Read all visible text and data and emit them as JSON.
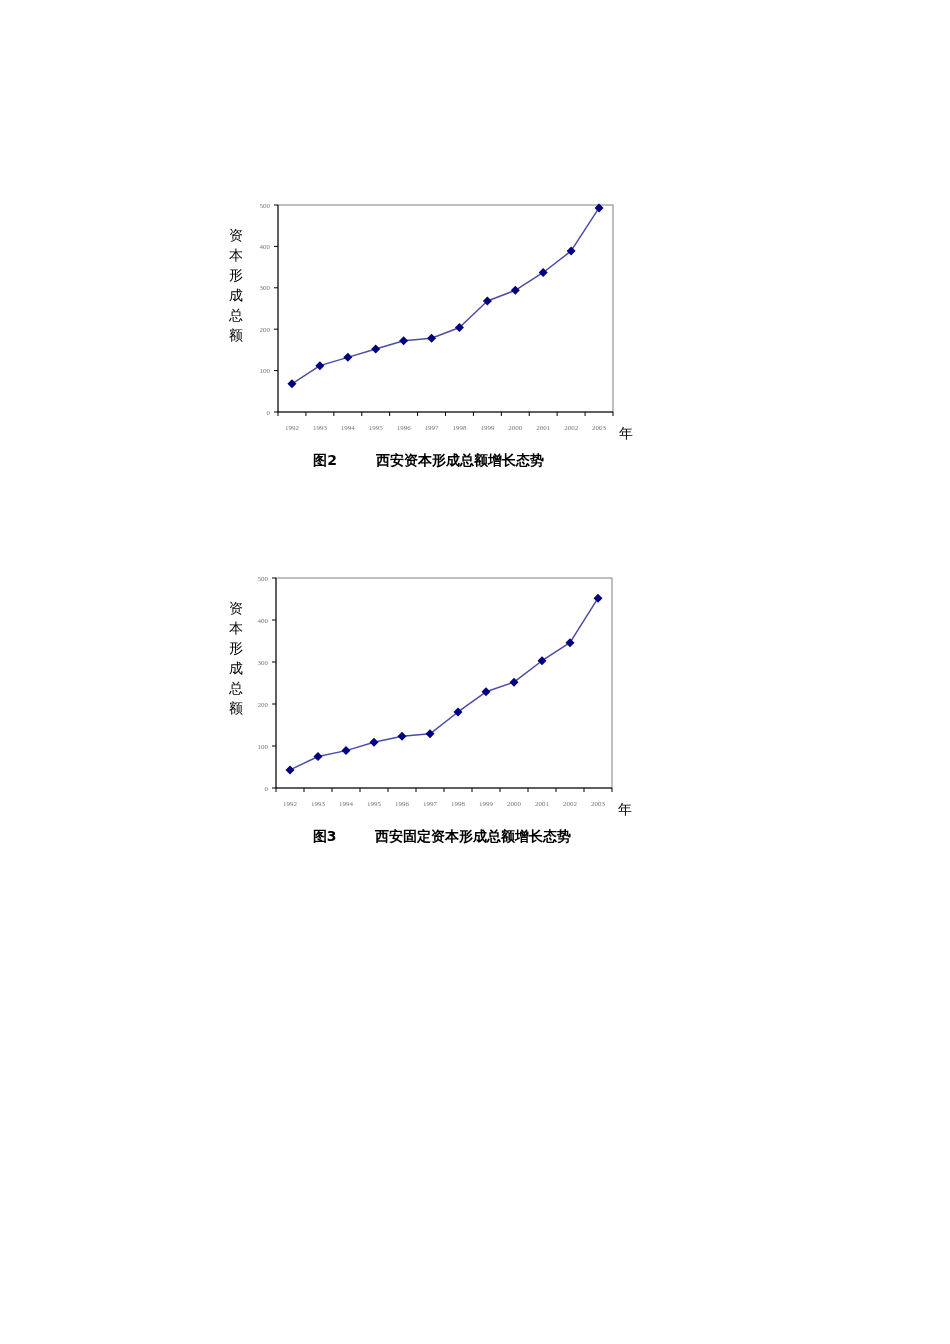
{
  "chart_data": [
    {
      "type": "line",
      "title": "图2        西安资本形成总额增长态势",
      "ylabel": "资本形成总额",
      "xlabel": "年",
      "categories": [
        "1992",
        "1993",
        "1994",
        "1995",
        "1996",
        "1997",
        "1998",
        "1999",
        "2000",
        "2001",
        "2002",
        "2003"
      ],
      "series": [
        {
          "color": "#000080",
          "values": [
            68,
            112,
            132,
            152,
            172,
            178,
            204,
            268,
            294,
            337,
            389,
            493
          ]
        }
      ],
      "ylim": [
        0,
        500
      ],
      "yticks": [
        0,
        100,
        200,
        300,
        400,
        500
      ],
      "grid": false,
      "marker": "diamond",
      "line_style": "solid"
    },
    {
      "type": "line",
      "title": "图3        西安固定资本形成总额增长态势",
      "ylabel": "资本形成总额",
      "xlabel": "年",
      "categories": [
        "1992",
        "1993",
        "1994",
        "1995",
        "1996",
        "1997",
        "1998",
        "1999",
        "2000",
        "2001",
        "2002",
        "2003"
      ],
      "series": [
        {
          "color": "#000080",
          "values": [
            43,
            75,
            89,
            109,
            123,
            129,
            181,
            229,
            252,
            303,
            346,
            452
          ]
        }
      ],
      "ylim": [
        0,
        500
      ],
      "yticks": [
        0,
        100,
        200,
        300,
        400,
        500
      ],
      "grid": false,
      "marker": "diamond",
      "line_style": "solid"
    }
  ]
}
